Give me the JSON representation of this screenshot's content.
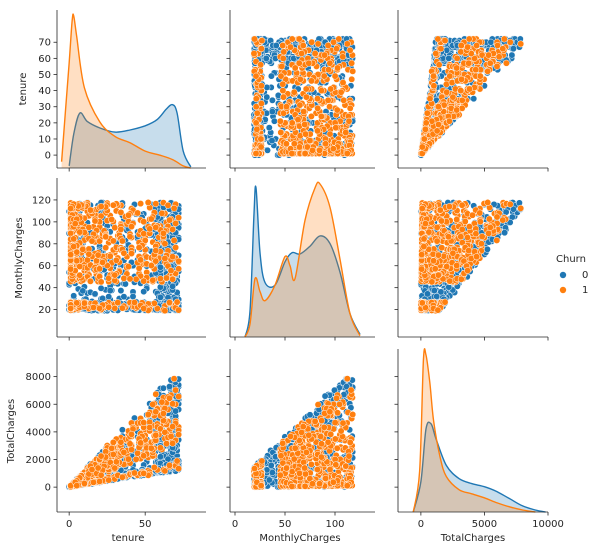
{
  "chart_data": {
    "type": "pairplot",
    "title": "",
    "variables": [
      "tenure",
      "MonthlyCharges",
      "TotalCharges"
    ],
    "hue": "Churn",
    "legend": {
      "title": "Churn",
      "placement": "right",
      "entries": [
        {
          "label": "0",
          "color": "#1f77b4"
        },
        {
          "label": "1",
          "color": "#ff7f0e"
        }
      ]
    },
    "axes": {
      "tenure": {
        "range": [
          -8,
          90
        ],
        "ticks": [
          0,
          10,
          20,
          30,
          40,
          50,
          60,
          70
        ],
        "xticks": [
          0,
          50
        ]
      },
      "MonthlyCharges": {
        "range": [
          -5,
          140
        ],
        "ticks": [
          20,
          40,
          60,
          80,
          100,
          120
        ],
        "xticks": [
          0,
          50,
          100
        ]
      },
      "TotalCharges": {
        "range": [
          -1800,
          10000
        ],
        "ticks": [
          0,
          2000,
          4000,
          6000,
          8000
        ],
        "xticks": [
          0,
          5000,
          10000
        ]
      }
    },
    "kde": {
      "tenure": {
        "0": [
          [
            0,
            1
          ],
          [
            3,
            16
          ],
          [
            7,
            26
          ],
          [
            12,
            22
          ],
          [
            20,
            19
          ],
          [
            30,
            17
          ],
          [
            40,
            18
          ],
          [
            50,
            20
          ],
          [
            58,
            23
          ],
          [
            64,
            28
          ],
          [
            68,
            30
          ],
          [
            71,
            26
          ],
          [
            75,
            8
          ],
          [
            80,
            0.5
          ]
        ],
        "1": [
          [
            -5,
            3
          ],
          [
            0,
            50
          ],
          [
            2,
            70
          ],
          [
            3,
            72
          ],
          [
            5,
            62
          ],
          [
            10,
            38
          ],
          [
            20,
            22
          ],
          [
            30,
            15
          ],
          [
            40,
            12
          ],
          [
            50,
            8
          ],
          [
            60,
            6
          ],
          [
            68,
            4
          ],
          [
            75,
            1
          ],
          [
            80,
            0
          ]
        ]
      },
      "MonthlyCharges": {
        "0": [
          [
            10,
            0
          ],
          [
            15,
            20
          ],
          [
            19,
            95
          ],
          [
            21,
            115
          ],
          [
            25,
            65
          ],
          [
            30,
            42
          ],
          [
            40,
            40
          ],
          [
            50,
            58
          ],
          [
            57,
            65
          ],
          [
            65,
            64
          ],
          [
            75,
            70
          ],
          [
            85,
            78
          ],
          [
            95,
            72
          ],
          [
            105,
            50
          ],
          [
            115,
            18
          ],
          [
            125,
            2
          ]
        ],
        "1": [
          [
            10,
            0
          ],
          [
            15,
            10
          ],
          [
            20,
            45
          ],
          [
            25,
            35
          ],
          [
            30,
            28
          ],
          [
            40,
            40
          ],
          [
            50,
            62
          ],
          [
            55,
            55
          ],
          [
            60,
            45
          ],
          [
            70,
            90
          ],
          [
            80,
            115
          ],
          [
            85,
            118
          ],
          [
            95,
            100
          ],
          [
            105,
            60
          ],
          [
            115,
            18
          ],
          [
            125,
            1
          ]
        ]
      },
      "TotalCharges": {
        "0": [
          [
            -600,
            0
          ],
          [
            0,
            30
          ],
          [
            400,
            82
          ],
          [
            800,
            87
          ],
          [
            1200,
            72
          ],
          [
            2000,
            46
          ],
          [
            3000,
            33
          ],
          [
            4000,
            28
          ],
          [
            5000,
            25
          ],
          [
            6000,
            20
          ],
          [
            7000,
            13
          ],
          [
            8000,
            6
          ],
          [
            9000,
            2
          ],
          [
            9800,
            0
          ]
        ],
        "1": [
          [
            -600,
            0
          ],
          [
            -100,
            40
          ],
          [
            200,
            150
          ],
          [
            400,
            155
          ],
          [
            700,
            128
          ],
          [
            1000,
            90
          ],
          [
            1500,
            55
          ],
          [
            2000,
            35
          ],
          [
            3000,
            22
          ],
          [
            4000,
            18
          ],
          [
            5000,
            14
          ],
          [
            6000,
            9
          ],
          [
            7000,
            5
          ],
          [
            8000,
            2
          ],
          [
            9000,
            0
          ]
        ]
      }
    }
  }
}
